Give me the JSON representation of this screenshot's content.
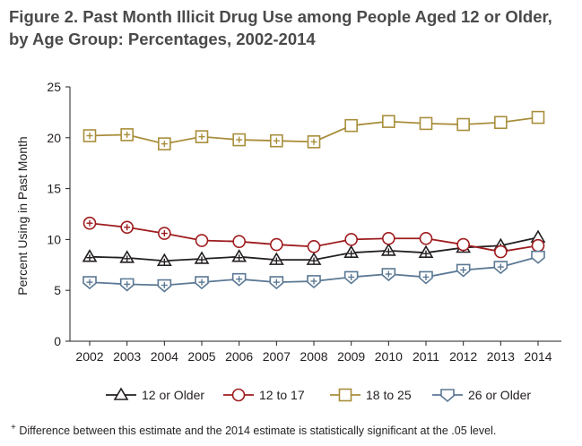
{
  "title_line1": "Figure 2. Past Month Illicit Drug Use among People Aged 12 or Older,",
  "title_line2": "by Age Group: Percentages, 2002-2014",
  "footnote_symbol": "+",
  "footnote_text": "Difference between this estimate and the 2014 estimate is statistically significant at the .05 level.",
  "chart_data": {
    "type": "line",
    "ylabel": "Percent Using in Past Month",
    "xlabel": "",
    "ylim": [
      0,
      25
    ],
    "yticks": [
      0,
      5,
      10,
      15,
      20,
      25
    ],
    "x": [
      "2002",
      "2003",
      "2004",
      "2005",
      "2006",
      "2007",
      "2008",
      "2009",
      "2010",
      "2011",
      "2012",
      "2013",
      "2014"
    ],
    "grid": false,
    "legend_position": "bottom",
    "series": [
      {
        "name": "12 or Older",
        "marker": "triangle",
        "color": "#231f20",
        "values": [
          8.3,
          8.2,
          7.9,
          8.1,
          8.3,
          8.0,
          8.0,
          8.7,
          8.9,
          8.7,
          9.2,
          9.4,
          10.2
        ],
        "significant": [
          true,
          true,
          true,
          true,
          true,
          true,
          true,
          true,
          true,
          true,
          true,
          true,
          false
        ]
      },
      {
        "name": "12 to 17",
        "marker": "circle",
        "color": "#9e1b1e",
        "values": [
          11.6,
          11.2,
          10.6,
          9.9,
          9.8,
          9.5,
          9.3,
          10.0,
          10.1,
          10.1,
          9.5,
          8.8,
          9.4
        ],
        "significant": [
          true,
          true,
          true,
          false,
          false,
          false,
          false,
          false,
          false,
          false,
          false,
          false,
          false
        ]
      },
      {
        "name": "18 to 25",
        "marker": "square",
        "color": "#a88e3b",
        "values": [
          20.2,
          20.3,
          19.4,
          20.1,
          19.8,
          19.7,
          19.6,
          21.2,
          21.6,
          21.4,
          21.3,
          21.5,
          22.0
        ],
        "significant": [
          true,
          true,
          true,
          true,
          true,
          true,
          true,
          false,
          false,
          false,
          false,
          false,
          false
        ]
      },
      {
        "name": "26 or Older",
        "marker": "pentagon",
        "color": "#5b7894",
        "values": [
          5.8,
          5.6,
          5.5,
          5.8,
          6.1,
          5.8,
          5.9,
          6.3,
          6.6,
          6.3,
          7.0,
          7.3,
          8.3
        ],
        "significant": [
          true,
          true,
          true,
          true,
          true,
          true,
          true,
          true,
          true,
          true,
          true,
          true,
          false
        ]
      }
    ]
  }
}
